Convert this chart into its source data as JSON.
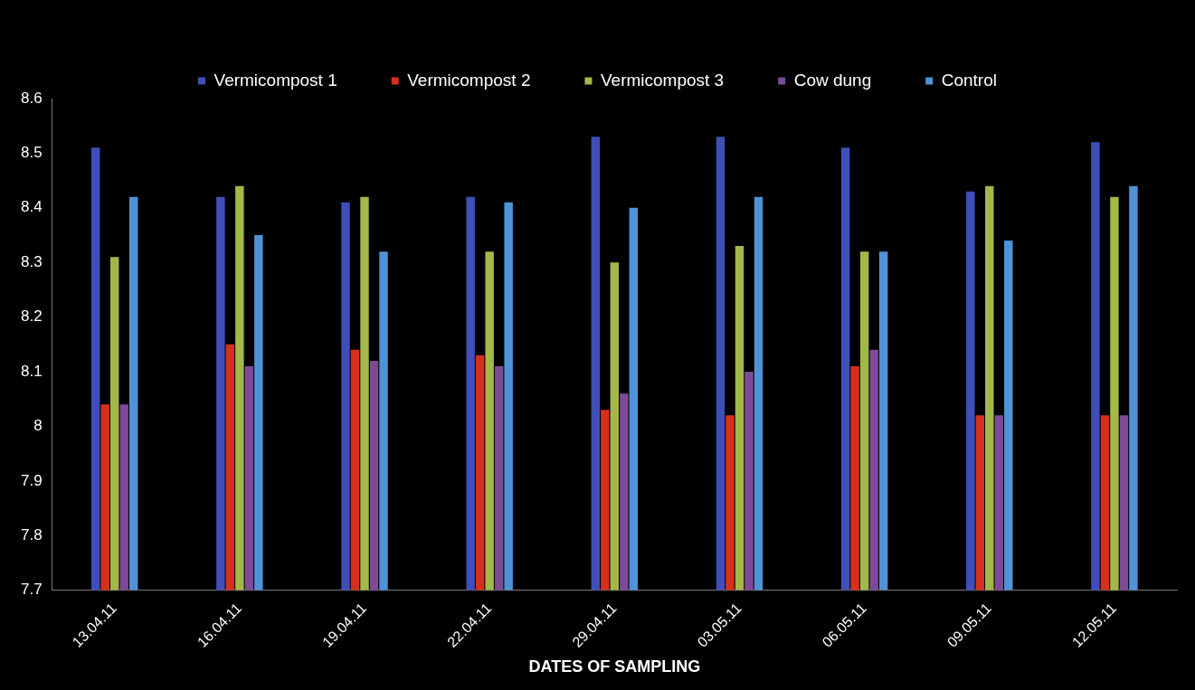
{
  "chart_data": {
    "type": "bar",
    "xlabel": "DATES OF SAMPLING",
    "categories": [
      "13.04.11",
      "16.04.11",
      "19.04.11",
      "22.04.11",
      "29.04.11",
      "03.05.11",
      "06.05.11",
      "09.05.11",
      "12.05.11"
    ],
    "series": [
      {
        "name": "Vermicompost 1",
        "color": "#3f4fb8",
        "values": [
          8.51,
          8.42,
          8.41,
          8.42,
          8.53,
          8.53,
          8.51,
          8.43,
          8.52
        ]
      },
      {
        "name": "Vermicompost 2",
        "color": "#d6301c",
        "values": [
          8.04,
          8.15,
          8.14,
          8.13,
          8.03,
          8.02,
          8.11,
          8.02,
          8.02
        ]
      },
      {
        "name": "Vermicompost 3",
        "color": "#a3b84a",
        "values": [
          8.31,
          8.44,
          8.42,
          8.32,
          8.3,
          8.33,
          8.32,
          8.44,
          8.42
        ]
      },
      {
        "name": "Cow dung",
        "color": "#7d4a96",
        "values": [
          8.04,
          8.11,
          8.12,
          8.11,
          8.06,
          8.1,
          8.14,
          8.02,
          8.02
        ]
      },
      {
        "name": "Control",
        "color": "#4f93d6",
        "values": [
          8.42,
          8.35,
          8.32,
          8.41,
          8.4,
          8.42,
          8.32,
          8.34,
          8.44
        ]
      }
    ],
    "ylim": [
      7.7,
      8.6
    ],
    "yticks": [
      7.7,
      7.8,
      7.9,
      8,
      8.1,
      8.2,
      8.3,
      8.4,
      8.5,
      8.6
    ],
    "grid": false,
    "legend": "top"
  }
}
